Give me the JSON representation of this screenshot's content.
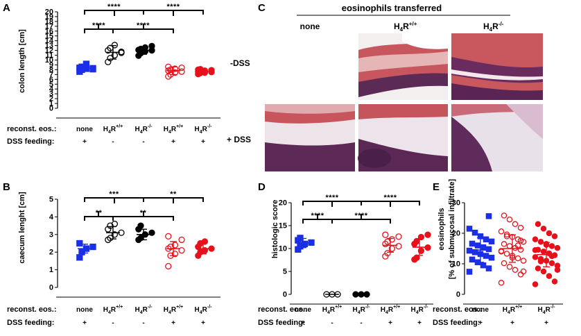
{
  "panels": {
    "A": {
      "letter": "A",
      "ylabel": "colon length [cm]",
      "side_label": "-DSS",
      "sig": [
        "****",
        "****",
        "****",
        "****"
      ]
    },
    "B": {
      "letter": "B",
      "ylabel": "caecum lenght [cm]",
      "sig": [
        "***",
        "**",
        "**",
        "**"
      ]
    },
    "C": {
      "letter": "C",
      "title": "eosinophils transferred",
      "cols": [
        "none",
        "H4R+/+",
        "H4R-/-"
      ],
      "side_label": "+ DSS"
    },
    "D": {
      "letter": "D",
      "ylabel": "histologic score",
      "sig": [
        "****",
        "****",
        "****",
        "****"
      ]
    },
    "E": {
      "letter": "E",
      "ylabel_line1": "eosinophils",
      "ylabel_line2": "[% of submucosal infiltrate]"
    }
  },
  "labels": {
    "reconst": "reconst. eos.:",
    "dss": "DSS feeding:",
    "none": "none"
  },
  "genotypes": {
    "wt": {
      "base": "H",
      "sub": "4",
      "main": "R",
      "sup": "+/+"
    },
    "ko": {
      "base": "H",
      "sub": "4",
      "main": "R",
      "sup": "-/-"
    }
  },
  "dss_rows": {
    "five": [
      "+",
      "-",
      "-",
      "+",
      "+"
    ],
    "three": [
      "+",
      "+",
      "+"
    ]
  },
  "colors": {
    "blue": "#1a2fe6",
    "black": "#000000",
    "red": "#e8101a"
  },
  "chart_data": [
    {
      "type": "scatter",
      "panel": "A",
      "title": "",
      "ylabel": "colon length [cm]",
      "ylim": [
        0,
        20
      ],
      "yticks": [
        0,
        1,
        2,
        3,
        4,
        5,
        6,
        7,
        8,
        9,
        10,
        11,
        12,
        13,
        14,
        15,
        16,
        17,
        18,
        19,
        20
      ],
      "groups": [
        {
          "name": "none",
          "mean": 8.3,
          "sd": 0.6,
          "values": [
            7.6,
            8.0,
            8.2,
            8.3,
            8.4,
            8.6,
            9.2,
            8.1
          ]
        },
        {
          "name": "H4R+/+ -DSS",
          "mean": 11.6,
          "sd": 1.4,
          "values": [
            9.6,
            10.4,
            11.0,
            11.5,
            12.0,
            12.5,
            13.1,
            11.7
          ]
        },
        {
          "name": "H4R-/- -DSS",
          "mean": 12.0,
          "sd": 0.8,
          "values": [
            10.9,
            11.4,
            11.8,
            12.0,
            12.1,
            12.3,
            12.6,
            12.9
          ]
        },
        {
          "name": "H4R+/+ +DSS",
          "mean": 7.8,
          "sd": 0.8,
          "values": [
            6.6,
            7.0,
            7.4,
            7.6,
            7.8,
            8.0,
            8.2,
            8.4,
            8.6
          ]
        },
        {
          "name": "H4R-/- +DSS",
          "mean": 7.6,
          "sd": 0.4,
          "values": [
            7.1,
            7.3,
            7.4,
            7.5,
            7.6,
            7.7,
            7.8,
            7.9,
            8.0,
            8.1
          ]
        }
      ]
    },
    {
      "type": "scatter",
      "panel": "B",
      "title": "",
      "ylabel": "caecum lenght [cm]",
      "ylim": [
        0,
        5
      ],
      "yticks": [
        0,
        1,
        2,
        3,
        4,
        5
      ],
      "groups": [
        {
          "name": "none",
          "mean": 2.2,
          "sd": 0.25,
          "values": [
            1.7,
            2.0,
            2.2,
            2.3,
            2.5
          ]
        },
        {
          "name": "H4R+/+ -DSS",
          "mean": 3.1,
          "sd": 0.35,
          "values": [
            2.7,
            2.8,
            3.0,
            3.1,
            3.3,
            3.5,
            3.6
          ]
        },
        {
          "name": "H4R-/- -DSS",
          "mean": 3.0,
          "sd": 0.3,
          "values": [
            2.7,
            2.8,
            3.0,
            3.1,
            3.3,
            3.5
          ]
        },
        {
          "name": "H4R+/+ +DSS",
          "mean": 2.2,
          "sd": 0.4,
          "values": [
            1.2,
            1.8,
            1.9,
            2.1,
            2.2,
            2.3,
            2.4,
            2.7,
            2.9
          ]
        },
        {
          "name": "H4R-/- +DSS",
          "mean": 2.2,
          "sd": 0.3,
          "values": [
            1.8,
            2.0,
            2.1,
            2.2,
            2.3,
            2.5,
            2.6
          ]
        }
      ]
    },
    {
      "type": "scatter",
      "panel": "D",
      "title": "",
      "ylabel": "histologic score",
      "ylim": [
        0,
        20
      ],
      "yticks": [
        0,
        5,
        10,
        15,
        20
      ],
      "groups": [
        {
          "name": "none",
          "mean": 11.2,
          "sd": 1.0,
          "values": [
            9.8,
            10.5,
            11.0,
            11.3,
            11.8,
            12.3
          ]
        },
        {
          "name": "H4R+/+ -DSS",
          "mean": 0,
          "sd": 0,
          "values": [
            0,
            0,
            0
          ]
        },
        {
          "name": "H4R-/- -DSS",
          "mean": 0,
          "sd": 0,
          "values": [
            0,
            0,
            0
          ]
        },
        {
          "name": "H4R+/+ +DSS",
          "mean": 10.7,
          "sd": 1.5,
          "values": [
            8.3,
            9.0,
            10.0,
            10.5,
            11.0,
            11.5,
            12.0,
            12.6,
            13.0
          ]
        },
        {
          "name": "H4R-/- +DSS",
          "mean": 10.3,
          "sd": 1.8,
          "values": [
            7.6,
            8.0,
            9.5,
            10.2,
            11.0,
            11.6,
            12.5,
            13.0
          ]
        }
      ]
    },
    {
      "type": "scatter",
      "panel": "E",
      "title": "",
      "ylim": [
        0,
        30
      ],
      "yticks": [
        0,
        10,
        20,
        30
      ],
      "groups": [
        {
          "name": "none",
          "mean": 14.5,
          "sd": 4.0,
          "values": [
            7.4,
            8.5,
            9.5,
            10.5,
            11.4,
            12.0,
            12.6,
            13.2,
            13.8,
            14.3,
            14.8,
            15.4,
            16.0,
            16.6,
            17.3,
            18.0,
            19.0,
            20.2,
            21.5,
            25.6
          ]
        },
        {
          "name": "H4R+/+",
          "mean": 15.0,
          "sd": 4.5,
          "values": [
            3.8,
            6.5,
            8.0,
            9.0,
            10.2,
            11.0,
            11.8,
            12.6,
            13.3,
            14.0,
            14.6,
            15.2,
            15.8,
            16.5,
            17.2,
            18.0,
            18.8,
            19.6,
            20.6,
            21.8,
            23.0,
            24.5,
            25.8,
            7.5,
            16.0,
            12.0,
            19.0,
            14.2,
            17.6
          ]
        },
        {
          "name": "H4R-/-",
          "mean": 13.0,
          "sd": 4.0,
          "values": [
            3.3,
            4.2,
            6.0,
            7.5,
            8.5,
            9.4,
            10.2,
            11.0,
            11.6,
            12.2,
            12.8,
            13.4,
            14.0,
            14.6,
            15.2,
            15.8,
            16.5,
            17.2,
            18.0,
            19.0,
            20.0,
            21.5,
            23.0,
            8.0,
            12.5,
            16.2,
            10.8,
            14.5
          ]
        }
      ]
    }
  ]
}
